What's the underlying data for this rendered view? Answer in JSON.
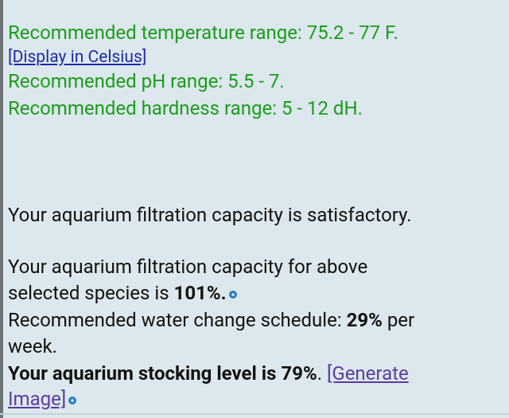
{
  "recommendations": {
    "temperature": "Recommended temperature range: 75.2 - 77 F.",
    "celsius_link": "[Display in Celsius]",
    "ph": "Recommended pH range: 5.5 - 7.",
    "hardness": "Recommended hardness range: 5 - 12 dH."
  },
  "filtration": {
    "status": "Your aquarium filtration capacity is satisfactory.",
    "capacity_line1": "Your aquarium filtration capacity for above",
    "capacity_line2": "selected species is ",
    "capacity_value": "101%",
    "capacity_end": ".",
    "water_change_text": "Recommended water change schedule: ",
    "water_change_value": "29%",
    "water_change_end": " per",
    "water_change_line2": "week.",
    "stocking_text": "Your aquarium stocking level is ",
    "stocking_value": "79%",
    "stocking_end": ". ",
    "generate_link_line1": "[Generate",
    "generate_link_line2": "Image]"
  }
}
